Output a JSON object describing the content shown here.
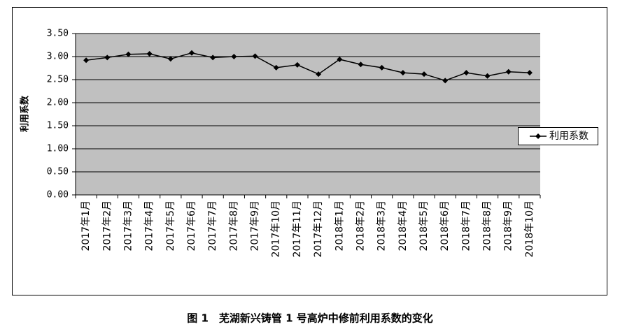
{
  "chart_data": {
    "type": "line",
    "caption": "图 1　芜湖新兴铸管 1 号高炉中修前利用系数的变化",
    "y_label": "利用系数",
    "categories": [
      "2017年1月",
      "2017年2月",
      "2017年3月",
      "2017年4月",
      "2017年5月",
      "2017年6月",
      "2017年7月",
      "2017年8月",
      "2017年9月",
      "2017年10月",
      "2017年11月",
      "2017年12月",
      "2018年1月",
      "2018年2月",
      "2018年3月",
      "2018年4月",
      "2018年5月",
      "2018年6月",
      "2018年7月",
      "2018年8月",
      "2018年9月",
      "2018年10月"
    ],
    "series": [
      {
        "name": "利用系数",
        "color": "#000000",
        "values": [
          2.92,
          2.98,
          3.05,
          3.06,
          2.95,
          3.08,
          2.98,
          3.0,
          3.01,
          2.76,
          2.82,
          2.62,
          2.94,
          2.83,
          2.76,
          2.65,
          2.62,
          2.48,
          2.65,
          2.58,
          2.67,
          2.65
        ]
      }
    ],
    "ylim": [
      0,
      3.5
    ],
    "yticks": [
      {
        "value": 0,
        "label": "0.00"
      },
      {
        "value": 0.5,
        "label": "0.50"
      },
      {
        "value": 1,
        "label": "1.00"
      },
      {
        "value": 1.5,
        "label": "1.50"
      },
      {
        "value": 2,
        "label": "2.00"
      },
      {
        "value": 2.5,
        "label": "2.50"
      },
      {
        "value": 3,
        "label": "3.00"
      },
      {
        "value": 3.5,
        "label": "3.50"
      }
    ],
    "grid": true,
    "legend": "right",
    "plot_background": "#c0c0c0"
  }
}
